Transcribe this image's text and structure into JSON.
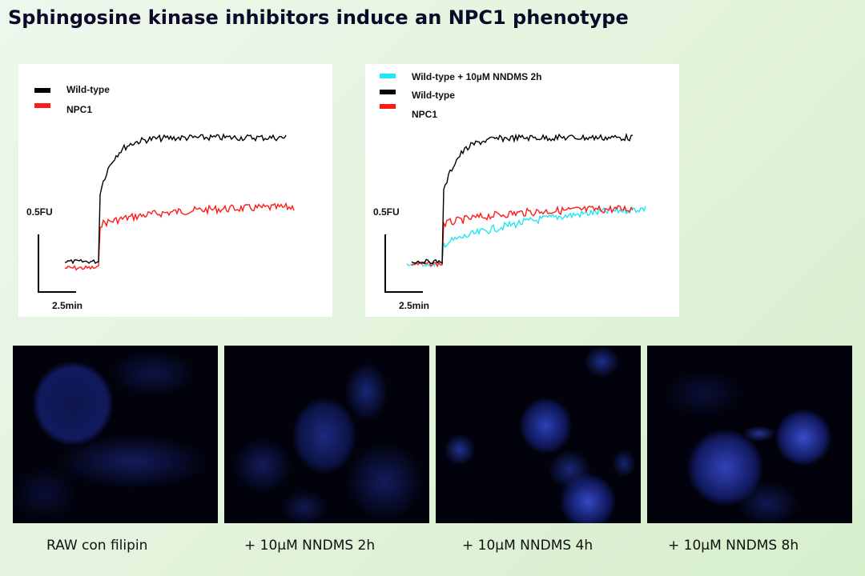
{
  "title": "Sphingosine kinase inhibitors induce an NPC1 phenotype",
  "colors": {
    "wild_type": "#000000",
    "npc1": "#ff1a1a",
    "nndms": "#22e6f5",
    "stain": "#2a46e8"
  },
  "left_plot": {
    "legend": [
      "Wild-type",
      "NPC1"
    ],
    "y_scale": "0.5FU",
    "x_scale": "2.5min"
  },
  "right_plot": {
    "legend": [
      "Wild-type  + 10µM NNDMS 2h",
      "Wild-type",
      "NPC1"
    ],
    "y_scale": "0.5FU",
    "x_scale": "2.5min"
  },
  "micrographs": [
    {
      "caption": "RAW  con filipin"
    },
    {
      "caption": "+ 10µM NNDMS 2h"
    },
    {
      "caption": "+ 10µM NNDMS 4h"
    },
    {
      "caption": "+ 10µM NNDMS 8h"
    }
  ]
}
